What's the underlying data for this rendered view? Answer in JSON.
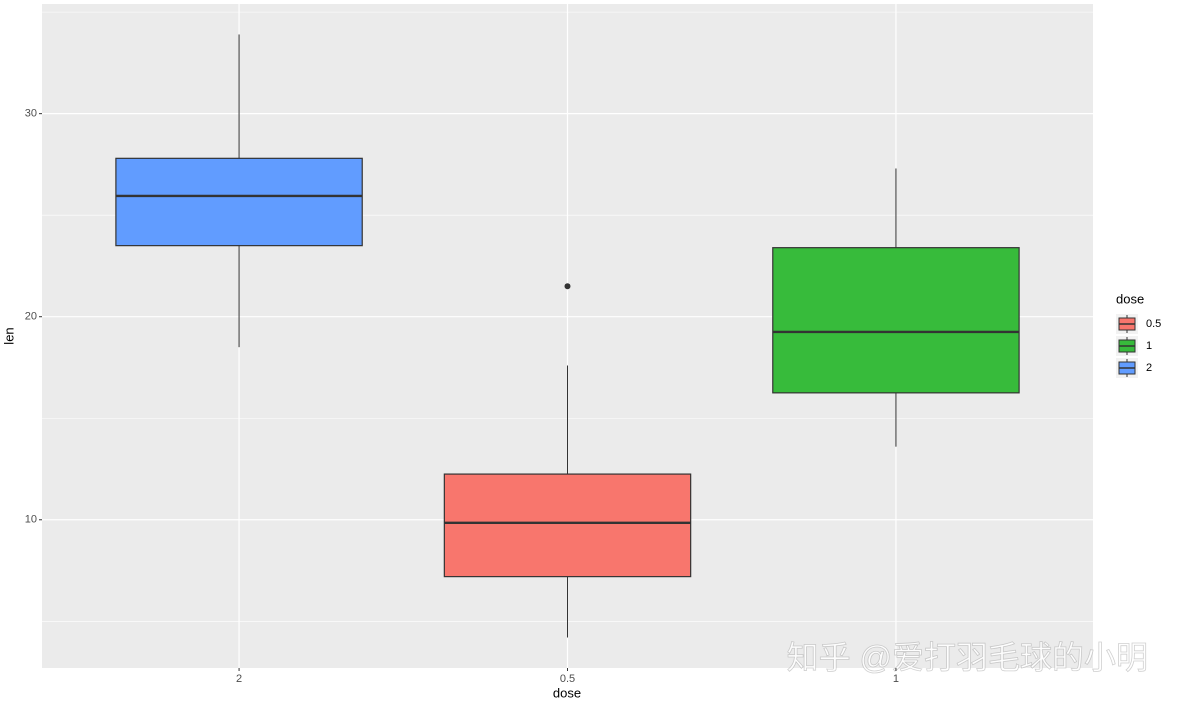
{
  "chart_data": {
    "type": "boxplot",
    "x_label": "dose",
    "y_label": "len",
    "legend_title": "dose",
    "categories": [
      "2",
      "0.5",
      "1"
    ],
    "series": [
      {
        "name": "0.5",
        "color": "#F8766D",
        "category": "0.5",
        "min": 4.2,
        "q1": 7.2,
        "median": 9.85,
        "q3": 12.25,
        "max": 17.6,
        "outliers": [
          21.5
        ]
      },
      {
        "name": "1",
        "color": "#37BB3B",
        "category": "1",
        "min": 13.6,
        "q1": 16.25,
        "median": 19.25,
        "q3": 23.4,
        "max": 27.3,
        "outliers": []
      },
      {
        "name": "2",
        "color": "#619CFF",
        "category": "2",
        "min": 18.5,
        "q1": 23.5,
        "median": 25.95,
        "q3": 27.8,
        "max": 33.9,
        "outliers": []
      }
    ],
    "ylim": [
      2.7,
      35.4
    ],
    "yticks": [
      10,
      20,
      30
    ],
    "y_minor_ticks": [
      5,
      15,
      25,
      35
    ],
    "grid": true,
    "legend_position": "right",
    "watermark": "知乎 @爱打羽毛球的小明"
  }
}
